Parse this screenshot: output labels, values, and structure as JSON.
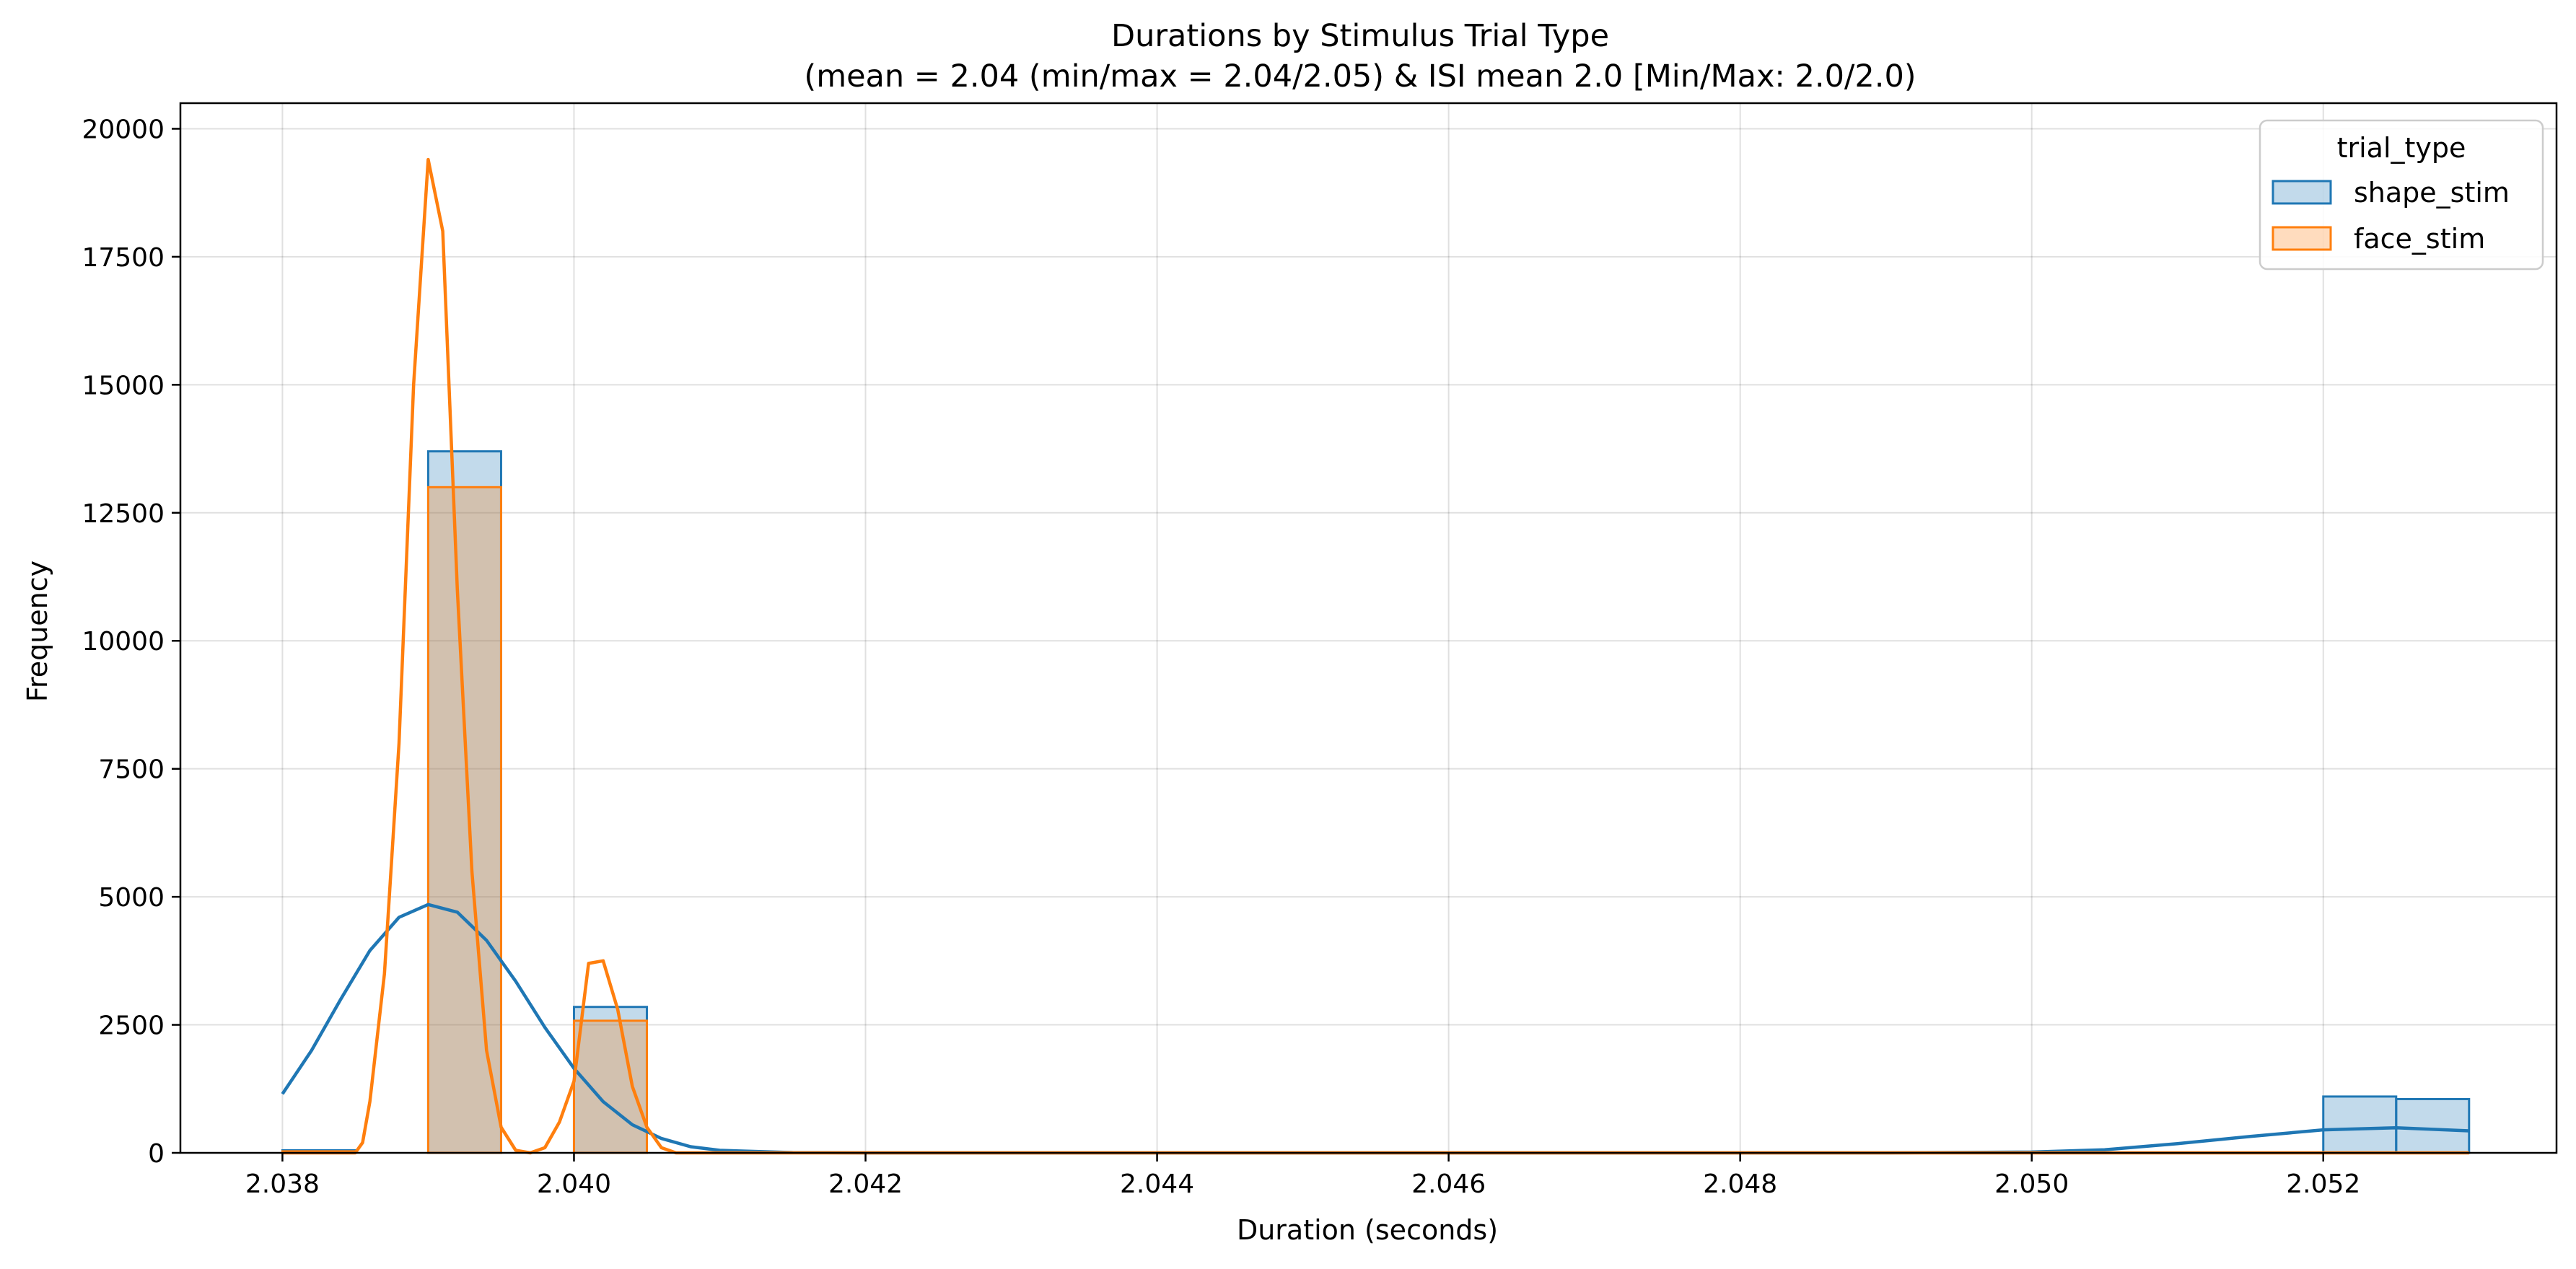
{
  "chart_data": {
    "type": "histogram",
    "title_line1": "Durations by Stimulus Trial Type",
    "title_line2": "(mean = 2.04 (min/max = 2.04/2.05) & ISI mean 2.0 [Min/Max: 2.0/2.0)",
    "xlabel": "Duration (seconds)",
    "ylabel": "Frequency",
    "xlim": [
      2.0373,
      2.0536
    ],
    "ylim": [
      0,
      20500
    ],
    "xticks": [
      2.038,
      2.04,
      2.042,
      2.044,
      2.046,
      2.048,
      2.05,
      2.052
    ],
    "xtick_labels": [
      "2.038",
      "2.040",
      "2.042",
      "2.044",
      "2.046",
      "2.048",
      "2.050",
      "2.052"
    ],
    "yticks": [
      0,
      2500,
      5000,
      7500,
      10000,
      12500,
      15000,
      17500,
      20000
    ],
    "ytick_labels": [
      "0",
      "2500",
      "5000",
      "7500",
      "10000",
      "12500",
      "15000",
      "17500",
      "20000"
    ],
    "grid": true,
    "legend": {
      "title": "trial_type",
      "placement": "top-right"
    },
    "bin_width": 0.0005,
    "series": [
      {
        "name": "shape_stim",
        "color": "#1f77b4",
        "bins": [
          {
            "x0": 2.038,
            "x1": 2.0385,
            "count": 50
          },
          {
            "x0": 2.039,
            "x1": 2.0395,
            "count": 13700
          },
          {
            "x0": 2.04,
            "x1": 2.0405,
            "count": 2850
          },
          {
            "x0": 2.052,
            "x1": 2.0525,
            "count": 1100
          },
          {
            "x0": 2.0525,
            "x1": 2.053,
            "count": 1050
          }
        ],
        "kde": [
          [
            2.038,
            1150
          ],
          [
            2.0382,
            2000
          ],
          [
            2.0384,
            3000
          ],
          [
            2.0386,
            3950
          ],
          [
            2.0388,
            4600
          ],
          [
            2.039,
            4850
          ],
          [
            2.0392,
            4700
          ],
          [
            2.0394,
            4150
          ],
          [
            2.0396,
            3350
          ],
          [
            2.0398,
            2450
          ],
          [
            2.04,
            1650
          ],
          [
            2.0402,
            1000
          ],
          [
            2.0404,
            550
          ],
          [
            2.0406,
            280
          ],
          [
            2.0408,
            120
          ],
          [
            2.041,
            50
          ],
          [
            2.0415,
            5
          ],
          [
            2.042,
            0
          ],
          [
            2.049,
            0
          ],
          [
            2.05,
            15
          ],
          [
            2.0505,
            60
          ],
          [
            2.051,
            180
          ],
          [
            2.0515,
            320
          ],
          [
            2.052,
            450
          ],
          [
            2.0525,
            490
          ],
          [
            2.053,
            430
          ]
        ]
      },
      {
        "name": "face_stim",
        "color": "#ff7f0e",
        "bins": [
          {
            "x0": 2.038,
            "x1": 2.0385,
            "count": 30
          },
          {
            "x0": 2.039,
            "x1": 2.0395,
            "count": 13000
          },
          {
            "x0": 2.04,
            "x1": 2.0405,
            "count": 2580
          },
          {
            "x0": 2.052,
            "x1": 2.0525,
            "count": 0
          },
          {
            "x0": 2.0525,
            "x1": 2.053,
            "count": 0
          }
        ],
        "kde": [
          [
            2.038,
            0
          ],
          [
            2.0385,
            0
          ],
          [
            2.03855,
            200
          ],
          [
            2.0386,
            1000
          ],
          [
            2.0387,
            3500
          ],
          [
            2.0388,
            8000
          ],
          [
            2.0389,
            15000
          ],
          [
            2.039,
            19400
          ],
          [
            2.0391,
            18000
          ],
          [
            2.0392,
            11000
          ],
          [
            2.0393,
            5500
          ],
          [
            2.0394,
            2000
          ],
          [
            2.0395,
            500
          ],
          [
            2.0396,
            50
          ],
          [
            2.0397,
            0
          ],
          [
            2.0398,
            100
          ],
          [
            2.0399,
            600
          ],
          [
            2.04,
            1400
          ],
          [
            2.0401,
            3700
          ],
          [
            2.0402,
            3750
          ],
          [
            2.0403,
            2800
          ],
          [
            2.0404,
            1300
          ],
          [
            2.0405,
            500
          ],
          [
            2.0406,
            100
          ],
          [
            2.0407,
            0
          ],
          [
            2.053,
            0
          ]
        ]
      }
    ]
  }
}
